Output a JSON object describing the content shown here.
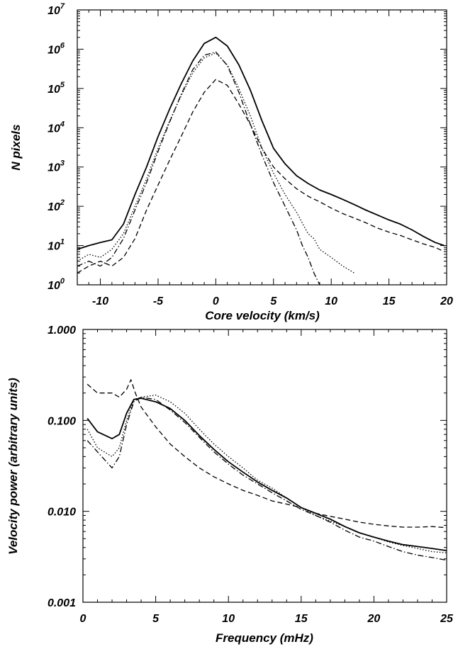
{
  "chart_data": [
    {
      "type": "line",
      "xlabel": "Core velocity (km/s)",
      "ylabel": "N pixels",
      "xlim": [
        -12,
        20
      ],
      "ylim_log10": [
        0,
        7
      ],
      "log_y": true,
      "x_ticks": [
        {
          "value": -10,
          "label": "-10"
        },
        {
          "value": -5,
          "label": "-5"
        },
        {
          "value": 0,
          "label": "0"
        },
        {
          "value": 5,
          "label": "5"
        },
        {
          "value": 10,
          "label": "10"
        },
        {
          "value": 15,
          "label": "15"
        },
        {
          "value": 20,
          "label": "20"
        }
      ],
      "y_ticks": [
        {
          "exp": 0,
          "base": "10",
          "sup": "0"
        },
        {
          "exp": 1,
          "base": "10",
          "sup": "1"
        },
        {
          "exp": 2,
          "base": "10",
          "sup": "2"
        },
        {
          "exp": 3,
          "base": "10",
          "sup": "3"
        },
        {
          "exp": 4,
          "base": "10",
          "sup": "4"
        },
        {
          "exp": 5,
          "base": "10",
          "sup": "5"
        },
        {
          "exp": 6,
          "base": "10",
          "sup": "6"
        },
        {
          "exp": 7,
          "base": "10",
          "sup": "7"
        }
      ],
      "series": [
        {
          "style": "solid",
          "x": [
            -12,
            -11,
            -10,
            -9,
            -8,
            -7,
            -6,
            -5,
            -4,
            -3,
            -2,
            -1,
            0,
            1,
            2,
            3,
            4,
            5,
            6,
            7,
            8,
            9,
            10,
            11,
            12,
            13,
            14,
            15,
            16,
            17,
            18,
            19,
            19.8
          ],
          "y": [
            8,
            10,
            12,
            14,
            35,
            200,
            1000,
            6000,
            30000,
            130000,
            500000,
            1400000,
            2000000,
            1200000,
            400000,
            90000,
            15000,
            3000,
            1200,
            600,
            380,
            260,
            200,
            150,
            110,
            80,
            60,
            45,
            35,
            25,
            17,
            12,
            10
          ]
        },
        {
          "style": "dotted",
          "x": [
            -12,
            -11,
            -10,
            -9,
            -8,
            -7,
            -6,
            -5,
            -4,
            -3,
            -2,
            -1,
            0,
            1,
            2,
            3,
            4,
            5,
            6,
            7,
            8,
            8.5,
            9,
            10,
            11,
            12
          ],
          "y": [
            4,
            6,
            5,
            8,
            20,
            100,
            500,
            3000,
            15000,
            65000,
            250000,
            600000,
            800000,
            400000,
            100000,
            20000,
            3000,
            700,
            200,
            70,
            20,
            15,
            8,
            5,
            3,
            2
          ]
        },
        {
          "style": "dash-dot",
          "x": [
            -12,
            -11,
            -10,
            -9,
            -8,
            -7,
            -6,
            -5,
            -4,
            -3,
            -2,
            -1,
            0,
            1,
            2,
            3,
            4,
            5,
            6,
            7,
            7.5,
            8,
            8.5,
            9
          ],
          "y": [
            3,
            4,
            3,
            5,
            15,
            80,
            400,
            2500,
            14000,
            70000,
            300000,
            700000,
            850000,
            380000,
            80000,
            12000,
            2000,
            400,
            100,
            25,
            10,
            5,
            2,
            1
          ]
        },
        {
          "style": "dashed",
          "x": [
            -12,
            -11,
            -10,
            -9,
            -8,
            -7,
            -6,
            -5,
            -4,
            -3,
            -2,
            -1,
            0,
            1,
            2,
            3,
            4,
            5,
            6,
            7,
            8,
            9,
            10,
            11,
            12,
            13,
            14,
            15,
            16,
            17,
            18,
            19,
            19.8
          ],
          "y": [
            2,
            3,
            4,
            3,
            5,
            15,
            80,
            350,
            1500,
            6000,
            25000,
            80000,
            170000,
            120000,
            40000,
            12000,
            3000,
            1000,
            500,
            280,
            180,
            130,
            90,
            65,
            50,
            38,
            28,
            22,
            18,
            14,
            11,
            9,
            7
          ]
        }
      ]
    },
    {
      "type": "line",
      "xlabel": "Frequency (mHz)",
      "ylabel": "Velocity power (arbitrary units)",
      "xlim": [
        0,
        25
      ],
      "ylim_log10": [
        -3,
        0
      ],
      "log_y": true,
      "x_ticks": [
        {
          "value": 0,
          "label": "0"
        },
        {
          "value": 5,
          "label": "5"
        },
        {
          "value": 10,
          "label": "10"
        },
        {
          "value": 15,
          "label": "15"
        },
        {
          "value": 20,
          "label": "20"
        },
        {
          "value": 25,
          "label": "25"
        }
      ],
      "y_ticks": [
        {
          "exp": -3,
          "label": "0.001"
        },
        {
          "exp": -2,
          "label": "0.010"
        },
        {
          "exp": -1,
          "label": "0.100"
        },
        {
          "exp": 0,
          "label": "1.000"
        }
      ],
      "series": [
        {
          "style": "solid",
          "x": [
            0.3,
            1,
            2,
            2.5,
            3,
            3.5,
            4,
            5,
            6,
            7,
            8,
            9,
            10,
            11,
            12,
            13,
            14,
            15,
            16,
            17,
            18,
            19,
            20,
            21,
            22,
            23,
            24,
            25
          ],
          "y": [
            0.105,
            0.075,
            0.063,
            0.07,
            0.12,
            0.17,
            0.175,
            0.16,
            0.135,
            0.1,
            0.068,
            0.048,
            0.035,
            0.027,
            0.021,
            0.017,
            0.014,
            0.011,
            0.0095,
            0.0082,
            0.0068,
            0.0058,
            0.0052,
            0.0047,
            0.0043,
            0.0041,
            0.0039,
            0.0037
          ]
        },
        {
          "style": "dotted",
          "x": [
            0.3,
            1,
            2,
            2.5,
            3,
            3.5,
            4,
            5,
            6,
            7,
            8,
            9,
            10,
            11,
            12,
            13,
            14,
            15,
            16,
            17,
            18,
            19,
            20,
            21,
            22,
            23,
            24,
            25
          ],
          "y": [
            0.08,
            0.05,
            0.04,
            0.05,
            0.1,
            0.17,
            0.18,
            0.19,
            0.16,
            0.12,
            0.08,
            0.055,
            0.04,
            0.03,
            0.022,
            0.018,
            0.014,
            0.011,
            0.009,
            0.0078,
            0.0068,
            0.0058,
            0.0052,
            0.0046,
            0.0042,
            0.0039,
            0.0036,
            0.0035
          ]
        },
        {
          "style": "dash-dot",
          "x": [
            0.3,
            1,
            2,
            2.5,
            3,
            3.5,
            4,
            5,
            6,
            7,
            8,
            9,
            10,
            11,
            12,
            13,
            14,
            15,
            16,
            17,
            18,
            19,
            20,
            21,
            22,
            23,
            24,
            25
          ],
          "y": [
            0.06,
            0.045,
            0.03,
            0.04,
            0.09,
            0.16,
            0.18,
            0.17,
            0.13,
            0.095,
            0.065,
            0.045,
            0.033,
            0.025,
            0.02,
            0.016,
            0.013,
            0.0105,
            0.009,
            0.0076,
            0.0062,
            0.0052,
            0.0047,
            0.0041,
            0.0036,
            0.0033,
            0.0031,
            0.0029
          ]
        },
        {
          "style": "dashed",
          "x": [
            0.3,
            1,
            2,
            2.5,
            3,
            3.3,
            3.6,
            4,
            5,
            6,
            7,
            8,
            9,
            10,
            11,
            12,
            13,
            14,
            15,
            16,
            17,
            18,
            19,
            20,
            21,
            22,
            23,
            24,
            25
          ],
          "y": [
            0.25,
            0.2,
            0.2,
            0.18,
            0.22,
            0.28,
            0.2,
            0.14,
            0.085,
            0.055,
            0.04,
            0.03,
            0.024,
            0.02,
            0.017,
            0.015,
            0.013,
            0.012,
            0.011,
            0.0095,
            0.0088,
            0.0082,
            0.0076,
            0.0072,
            0.0069,
            0.0067,
            0.0067,
            0.0068,
            0.0066
          ]
        }
      ]
    }
  ]
}
